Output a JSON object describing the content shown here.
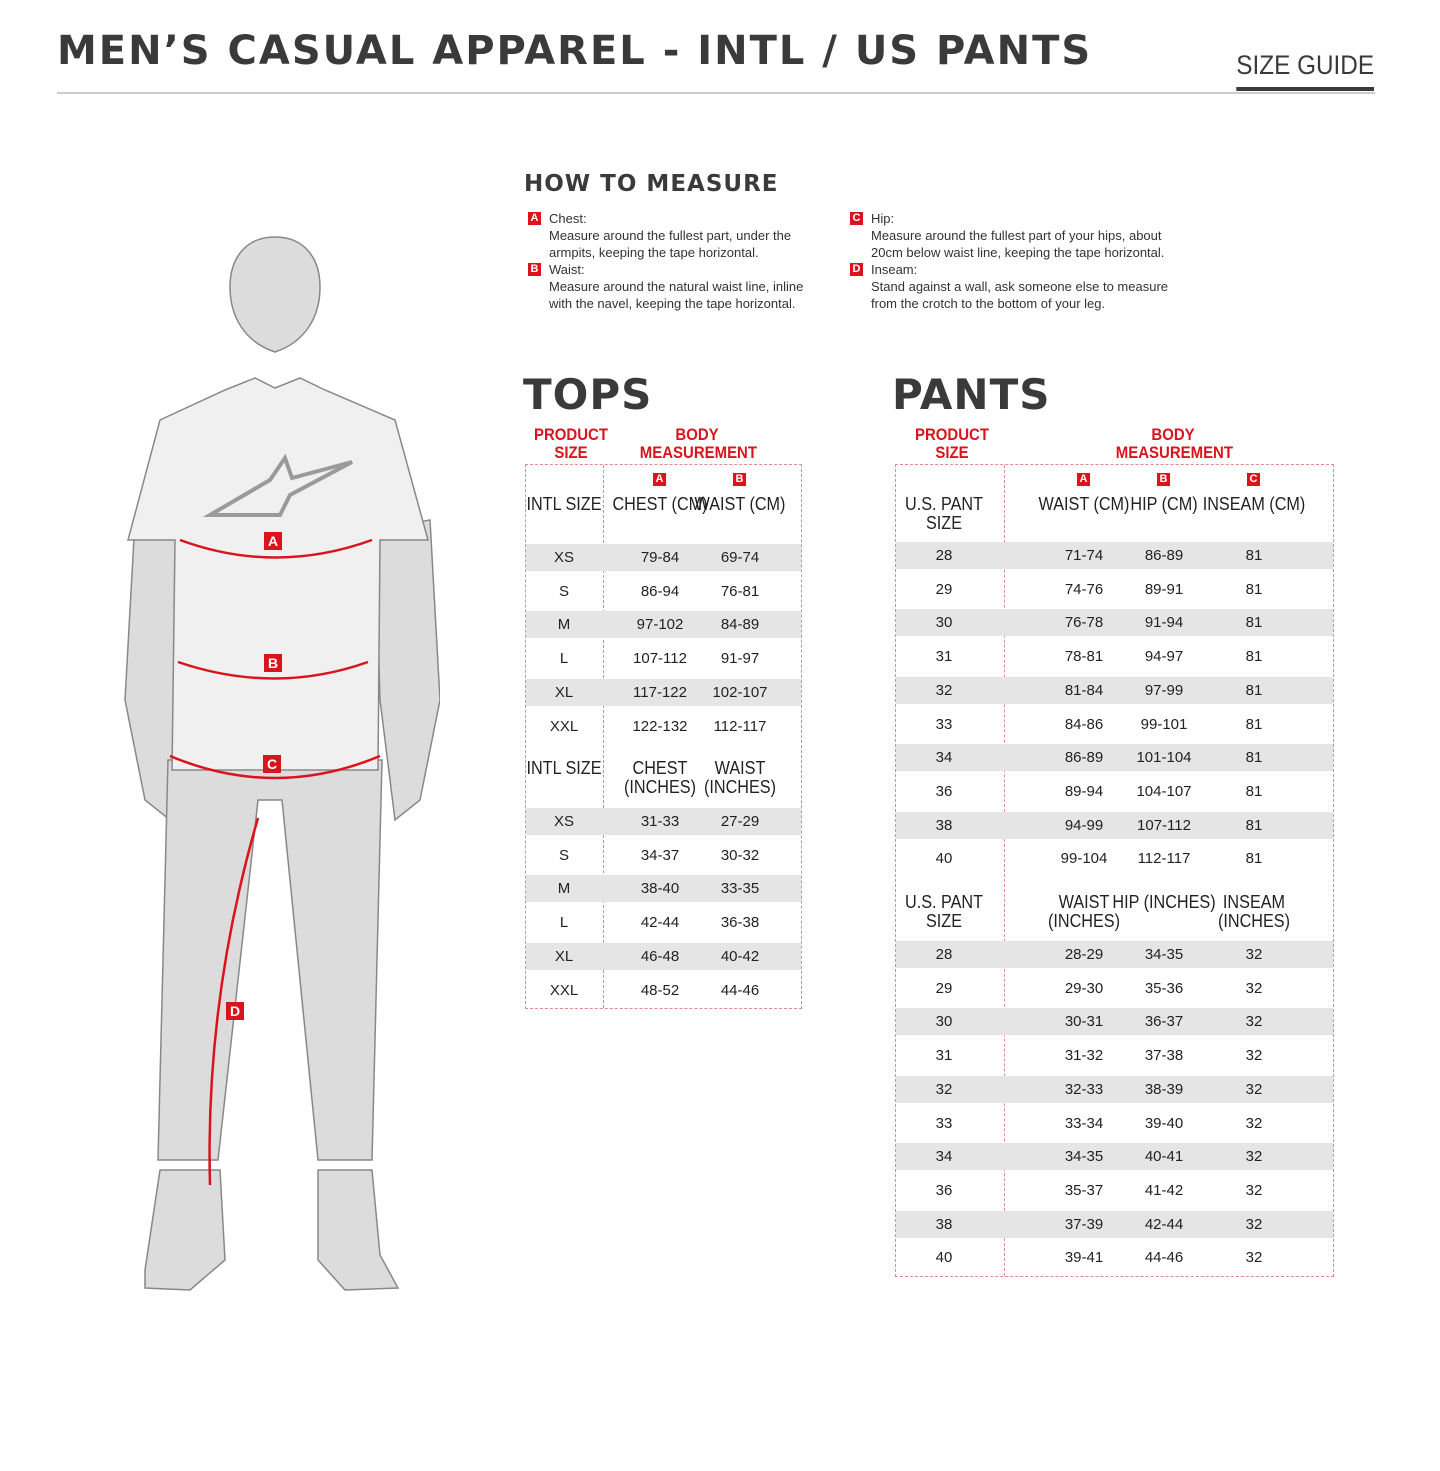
{
  "header": {
    "title": "MEN’S CASUAL APPAREL - INTL / US PANTS",
    "size_guide": "SIZE GUIDE"
  },
  "figure": {
    "labels": [
      "A",
      "B",
      "C",
      "D"
    ],
    "accent": "#d9141c"
  },
  "how_to_measure": {
    "title": "HOW TO MEASURE",
    "items": [
      {
        "badge": "A",
        "name": "Chest:",
        "text": "Measure around the fullest part, under the armpits, keeping the tape horizontal."
      },
      {
        "badge": "B",
        "name": "Waist:",
        "text": "Measure around the natural waist line, inline with the navel, keeping the tape horizontal."
      },
      {
        "badge": "C",
        "name": "Hip:",
        "text": "Measure around the fullest part of your hips, about 20cm below waist line, keeping the tape horizontal."
      },
      {
        "badge": "D",
        "name": "Inseam:",
        "text": "Stand against a wall, ask someone else to measure from the crotch to the bottom of your leg."
      }
    ]
  },
  "tops": {
    "title": "TOPS",
    "product_size": "PRODUCT SIZE",
    "body_measurement": "BODY MEASUREMENT",
    "badges": [
      "A",
      "B"
    ],
    "cm_headers": [
      "INTL SIZE",
      "CHEST (CM)",
      "WAIST (CM)"
    ],
    "cm_rows": [
      [
        "XS",
        "79-84",
        "69-74"
      ],
      [
        "S",
        "86-94",
        "76-81"
      ],
      [
        "M",
        "97-102",
        "84-89"
      ],
      [
        "L",
        "107-112",
        "91-97"
      ],
      [
        "XL",
        "117-122",
        "102-107"
      ],
      [
        "XXL",
        "122-132",
        "112-117"
      ]
    ],
    "in_headers": [
      "INTL SIZE",
      "CHEST (INCHES)",
      "WAIST (INCHES)"
    ],
    "in_rows": [
      [
        "XS",
        "31-33",
        "27-29"
      ],
      [
        "S",
        "34-37",
        "30-32"
      ],
      [
        "M",
        "38-40",
        "33-35"
      ],
      [
        "L",
        "42-44",
        "36-38"
      ],
      [
        "XL",
        "46-48",
        "40-42"
      ],
      [
        "XXL",
        "48-52",
        "44-46"
      ]
    ]
  },
  "pants": {
    "title": "PANTS",
    "product_size": "PRODUCT SIZE",
    "body_measurement": "BODY MEASUREMENT",
    "badges": [
      "A",
      "B",
      "C"
    ],
    "cm_headers": [
      "U.S. PANT SIZE",
      "WAIST (CM)",
      "HIP (CM)",
      "INSEAM (CM)"
    ],
    "cm_rows": [
      [
        "28",
        "71-74",
        "86-89",
        "81"
      ],
      [
        "29",
        "74-76",
        "89-91",
        "81"
      ],
      [
        "30",
        "76-78",
        "91-94",
        "81"
      ],
      [
        "31",
        "78-81",
        "94-97",
        "81"
      ],
      [
        "32",
        "81-84",
        "97-99",
        "81"
      ],
      [
        "33",
        "84-86",
        "99-101",
        "81"
      ],
      [
        "34",
        "86-89",
        "101-104",
        "81"
      ],
      [
        "36",
        "89-94",
        "104-107",
        "81"
      ],
      [
        "38",
        "94-99",
        "107-112",
        "81"
      ],
      [
        "40",
        "99-104",
        "112-117",
        "81"
      ]
    ],
    "in_headers": [
      "U.S. PANT SIZE",
      "WAIST (INCHES)",
      "HIP (INCHES)",
      "INSEAM (INCHES)"
    ],
    "in_rows": [
      [
        "28",
        "28-29",
        "34-35",
        "32"
      ],
      [
        "29",
        "29-30",
        "35-36",
        "32"
      ],
      [
        "30",
        "30-31",
        "36-37",
        "32"
      ],
      [
        "31",
        "31-32",
        "37-38",
        "32"
      ],
      [
        "32",
        "32-33",
        "38-39",
        "32"
      ],
      [
        "33",
        "33-34",
        "39-40",
        "32"
      ],
      [
        "34",
        "34-35",
        "40-41",
        "32"
      ],
      [
        "36",
        "35-37",
        "41-42",
        "32"
      ],
      [
        "38",
        "37-39",
        "42-44",
        "32"
      ],
      [
        "40",
        "39-41",
        "44-46",
        "32"
      ]
    ]
  }
}
